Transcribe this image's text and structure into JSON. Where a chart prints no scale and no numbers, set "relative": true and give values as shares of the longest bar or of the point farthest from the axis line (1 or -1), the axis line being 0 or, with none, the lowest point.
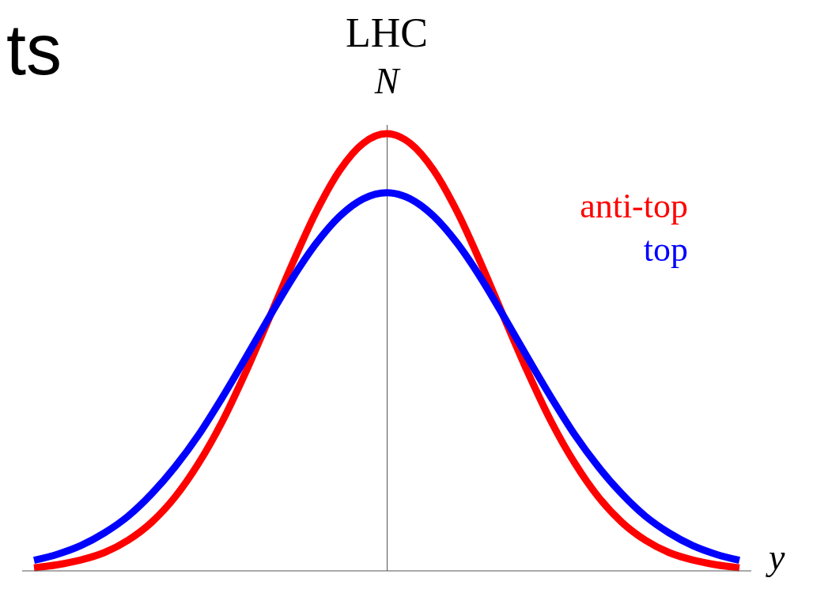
{
  "chart_data": {
    "type": "line",
    "title": "LHC",
    "ylabel": "N",
    "xlabel": "y",
    "relative": true,
    "legend": "top right",
    "annotations": [
      "ts"
    ],
    "categories": [
      null,
      null,
      null,
      null,
      null,
      null,
      null,
      null,
      null,
      null,
      null,
      null,
      null,
      null,
      null,
      null,
      null,
      null,
      null,
      null,
      null,
      null,
      null,
      null,
      null,
      null,
      null,
      null,
      null,
      null,
      null
    ],
    "series": [
      {
        "name": "anti-top",
        "color": "#ff0000",
        "values": [
          0.007,
          0.014,
          0.025,
          0.042,
          0.07,
          0.111,
          0.169,
          0.246,
          0.341,
          0.454,
          0.578,
          0.704,
          0.821,
          0.916,
          0.978,
          1,
          0.978,
          0.916,
          0.821,
          0.704,
          0.578,
          0.454,
          0.341,
          0.246,
          0.169,
          0.111,
          0.07,
          0.042,
          0.025,
          0.014,
          0.007
        ]
      },
      {
        "name": "top",
        "color": "#0000ff",
        "values": [
          0.024,
          0.038,
          0.058,
          0.087,
          0.125,
          0.176,
          0.238,
          0.311,
          0.396,
          0.487,
          0.58,
          0.67,
          0.749,
          0.811,
          0.851,
          0.865,
          0.851,
          0.811,
          0.749,
          0.67,
          0.58,
          0.487,
          0.396,
          0.311,
          0.238,
          0.176,
          0.125,
          0.087,
          0.058,
          0.038,
          0.024
        ]
      }
    ]
  }
}
